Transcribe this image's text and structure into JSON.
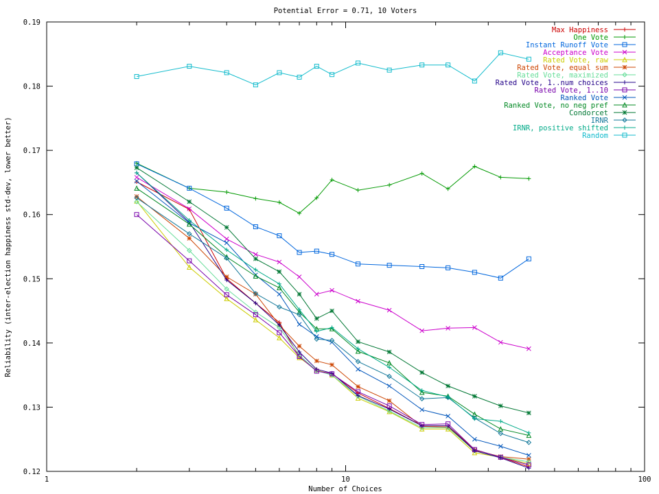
{
  "chart_data": {
    "type": "line",
    "title": "Potential Error = 0.71, 10 Voters",
    "xlabel": "Number of Choices",
    "ylabel": "Reliability (inter-election happiness std-dev, lower better)",
    "xscale": "log",
    "xlim": [
      1,
      100
    ],
    "ylim": [
      0.12,
      0.19
    ],
    "x_ticks": [
      1,
      10,
      100
    ],
    "x_tick_labels": [
      "1",
      "10",
      "100"
    ],
    "y_ticks": [
      0.12,
      0.13,
      0.14,
      0.15,
      0.16,
      0.17,
      0.18,
      0.19
    ],
    "y_tick_labels": [
      "0.12",
      "0.13",
      "0.14",
      "0.15",
      "0.16",
      "0.17",
      "0.18",
      "0.19"
    ],
    "grid": false,
    "legend_position": "top-right",
    "x": [
      2,
      3,
      4,
      5,
      6,
      7,
      8,
      9,
      11,
      14,
      18,
      22,
      27,
      33,
      41
    ],
    "series": [
      {
        "name": "Max Happiness",
        "color": "#cc0000",
        "marker": "plus",
        "values": [
          0.1651,
          0.1608,
          0.15,
          0.1462,
          0.1432,
          0.1378,
          0.1357,
          0.1352,
          0.1322,
          0.1298,
          0.1271,
          0.1271,
          0.1234,
          0.1222,
          0.1207
        ]
      },
      {
        "name": "One Vote",
        "color": "#009900",
        "marker": "plus",
        "values": [
          0.168,
          0.1641,
          0.1635,
          0.1625,
          0.1619,
          0.1602,
          0.1626,
          0.1654,
          0.1638,
          0.1646,
          0.1664,
          0.164,
          0.1675,
          0.1658,
          0.1656
        ]
      },
      {
        "name": "Instant Runoff Vote",
        "color": "#0066dd",
        "marker": "square",
        "values": [
          0.1679,
          0.1641,
          0.161,
          0.1581,
          0.1567,
          0.1541,
          0.1543,
          0.1538,
          0.1523,
          0.1521,
          0.1519,
          0.1517,
          0.151,
          0.1501,
          0.1531
        ]
      },
      {
        "name": "Acceptance Vote",
        "color": "#cc00cc",
        "marker": "x",
        "values": [
          0.1658,
          0.1609,
          0.1562,
          0.1538,
          0.1526,
          0.1503,
          0.1476,
          0.1482,
          0.1465,
          0.1451,
          0.1419,
          0.1423,
          0.1424,
          0.1401,
          0.1391
        ]
      },
      {
        "name": "Rated Vote, raw",
        "color": "#cccc00",
        "marker": "triangle",
        "values": [
          0.1621,
          0.1518,
          0.1469,
          0.1436,
          0.1408,
          0.1377,
          0.1358,
          0.135,
          0.1314,
          0.1293,
          0.1266,
          0.1266,
          0.1229,
          0.1222,
          0.1212
        ]
      },
      {
        "name": "Rated Vote, equal sum",
        "color": "#cc4400",
        "marker": "star",
        "values": [
          0.1628,
          0.1563,
          0.1503,
          0.1476,
          0.1428,
          0.1395,
          0.1372,
          0.1366,
          0.1332,
          0.131,
          0.127,
          0.1269,
          0.1233,
          0.1223,
          0.1219
        ]
      },
      {
        "name": "Rated Vote, maximized",
        "color": "#66dd99",
        "marker": "diamond",
        "values": [
          0.162,
          0.1544,
          0.1484,
          0.1448,
          0.1424,
          0.1381,
          0.1357,
          0.135,
          0.1317,
          0.1294,
          0.1268,
          0.1268,
          0.1232,
          0.1222,
          0.1215
        ]
      },
      {
        "name": "Rated Vote, 1..num choices",
        "color": "#220088",
        "marker": "plus",
        "values": [
          0.1665,
          0.1588,
          0.1498,
          0.1462,
          0.1428,
          0.1386,
          0.1359,
          0.1353,
          0.1318,
          0.1297,
          0.1271,
          0.1271,
          0.1232,
          0.1221,
          0.1205
        ]
      },
      {
        "name": "Rated Vote, 1..10",
        "color": "#7700aa",
        "marker": "square",
        "values": [
          0.16,
          0.1528,
          0.1475,
          0.1444,
          0.1416,
          0.1379,
          0.1356,
          0.1352,
          0.1324,
          0.1302,
          0.1273,
          0.1274,
          0.1234,
          0.1222,
          0.121
        ]
      },
      {
        "name": "Ranked Vote",
        "color": "#0055bb",
        "marker": "x",
        "values": [
          0.1652,
          0.1587,
          0.1556,
          0.1506,
          0.1476,
          0.1429,
          0.141,
          0.1401,
          0.1359,
          0.1333,
          0.1296,
          0.1286,
          0.125,
          0.1239,
          0.1225
        ]
      },
      {
        "name": "Ranked Vote, no neg pref",
        "color": "#008822",
        "marker": "triangle",
        "values": [
          0.1641,
          0.1585,
          0.1534,
          0.1504,
          0.1486,
          0.1448,
          0.1422,
          0.1422,
          0.1387,
          0.1369,
          0.1323,
          0.1317,
          0.1289,
          0.1266,
          0.1256
        ]
      },
      {
        "name": "Condorcet",
        "color": "#007733",
        "marker": "star",
        "values": [
          0.1673,
          0.162,
          0.158,
          0.1531,
          0.1511,
          0.1476,
          0.1438,
          0.145,
          0.1402,
          0.1386,
          0.1354,
          0.1333,
          0.1317,
          0.1302,
          0.1291
        ]
      },
      {
        "name": "IRNR",
        "color": "#117799",
        "marker": "diamond",
        "values": [
          0.1626,
          0.157,
          0.1532,
          0.1477,
          0.1456,
          0.1444,
          0.1406,
          0.1404,
          0.1371,
          0.1348,
          0.1313,
          0.1315,
          0.1283,
          0.1259,
          0.1245
        ]
      },
      {
        "name": "IRNR, positive shifted",
        "color": "#00aa88",
        "marker": "plus",
        "values": [
          0.1665,
          0.1591,
          0.1545,
          0.1514,
          0.1492,
          0.1452,
          0.1418,
          0.1424,
          0.1391,
          0.1362,
          0.1326,
          0.1316,
          0.1282,
          0.1278,
          0.126
        ]
      },
      {
        "name": "Random",
        "color": "#11bbcc",
        "marker": "square",
        "values": [
          0.1815,
          0.1831,
          0.1821,
          0.1802,
          0.1821,
          0.1814,
          0.1831,
          0.1818,
          0.1836,
          0.1825,
          0.1833,
          0.1833,
          0.1808,
          0.1852,
          0.1842
        ]
      }
    ]
  }
}
